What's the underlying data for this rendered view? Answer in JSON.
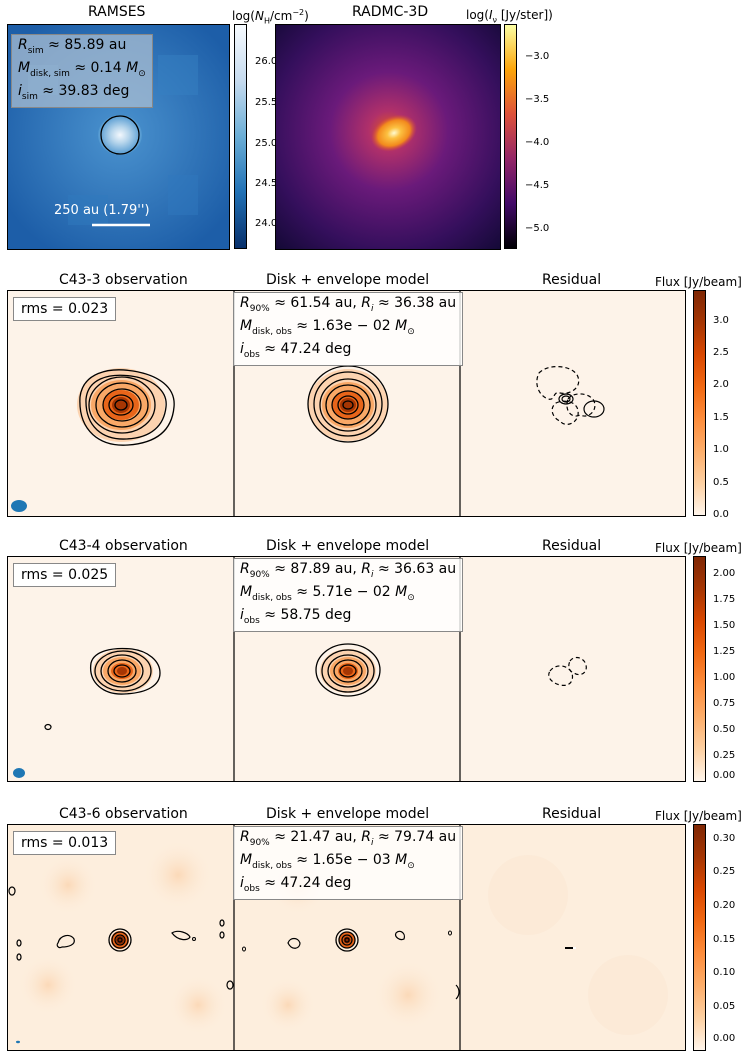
{
  "top": {
    "ramses": {
      "title": "RAMSES",
      "colorbar_label": "log(N_H/cm^-2)",
      "colorbar_ticks": [
        "26.0",
        "25.5",
        "25.0",
        "24.5",
        "24.0"
      ],
      "info_lines": [
        "R_sim ≈ 85.89 au",
        "M_disk,sim ≈ 0.14 M⊙",
        "i_sim ≈ 39.83 deg"
      ],
      "scalebar_label": "250 au (1.79'')"
    },
    "radmc": {
      "title": "RADMC-3D",
      "colorbar_label": "log(I_ν [Jy/ster])",
      "colorbar_ticks": [
        "−3.0",
        "−3.5",
        "−4.0",
        "−4.5",
        "−5.0"
      ]
    }
  },
  "rows": [
    {
      "obs_title": "C43-3 observation",
      "model_title": "Disk + envelope model",
      "resid_title": "Residual",
      "cb_title": "Flux [Jy/beam]",
      "rms": "rms = 0.023",
      "model_lines": [
        "R90% ≈ 61.54 au, Ri ≈ 36.38 au",
        "Mdisk,obs ≈ 1.63e − 02 M⊙",
        "iobs ≈ 47.24 deg"
      ],
      "cb_ticks": [
        "3.0",
        "2.5",
        "2.0",
        "1.5",
        "1.0",
        "0.5",
        "0.0"
      ]
    },
    {
      "obs_title": "C43-4 observation",
      "model_title": "Disk + envelope model",
      "resid_title": "Residual",
      "cb_title": "Flux [Jy/beam]",
      "rms": "rms = 0.025",
      "model_lines": [
        "R90% ≈ 87.89 au, Ri ≈ 36.63 au",
        "Mdisk,obs ≈ 5.71e − 02 M⊙",
        "iobs ≈ 58.75 deg"
      ],
      "cb_ticks": [
        "2.00",
        "1.75",
        "1.50",
        "1.25",
        "1.00",
        "0.75",
        "0.50",
        "0.25",
        "0.00"
      ]
    },
    {
      "obs_title": "C43-6 observation",
      "model_title": "Disk + envelope model",
      "resid_title": "Residual",
      "cb_title": "Flux [Jy/beam]",
      "rms": "rms = 0.013",
      "model_lines": [
        "R90% ≈ 21.47 au, Ri ≈ 79.74 au",
        "Mdisk,obs ≈ 1.65e − 03 M⊙",
        "iobs ≈ 47.24 deg"
      ],
      "cb_ticks": [
        "0.30",
        "0.25",
        "0.20",
        "0.15",
        "0.10",
        "0.05",
        "0.00"
      ]
    }
  ],
  "colors": {
    "ramses_bg": "#2a6fb5",
    "radmc_bg": "#2a0f55",
    "flux_bg": "#fdf3e9",
    "flux_peak": "#7f2704",
    "beam": "#1f77b4"
  }
}
